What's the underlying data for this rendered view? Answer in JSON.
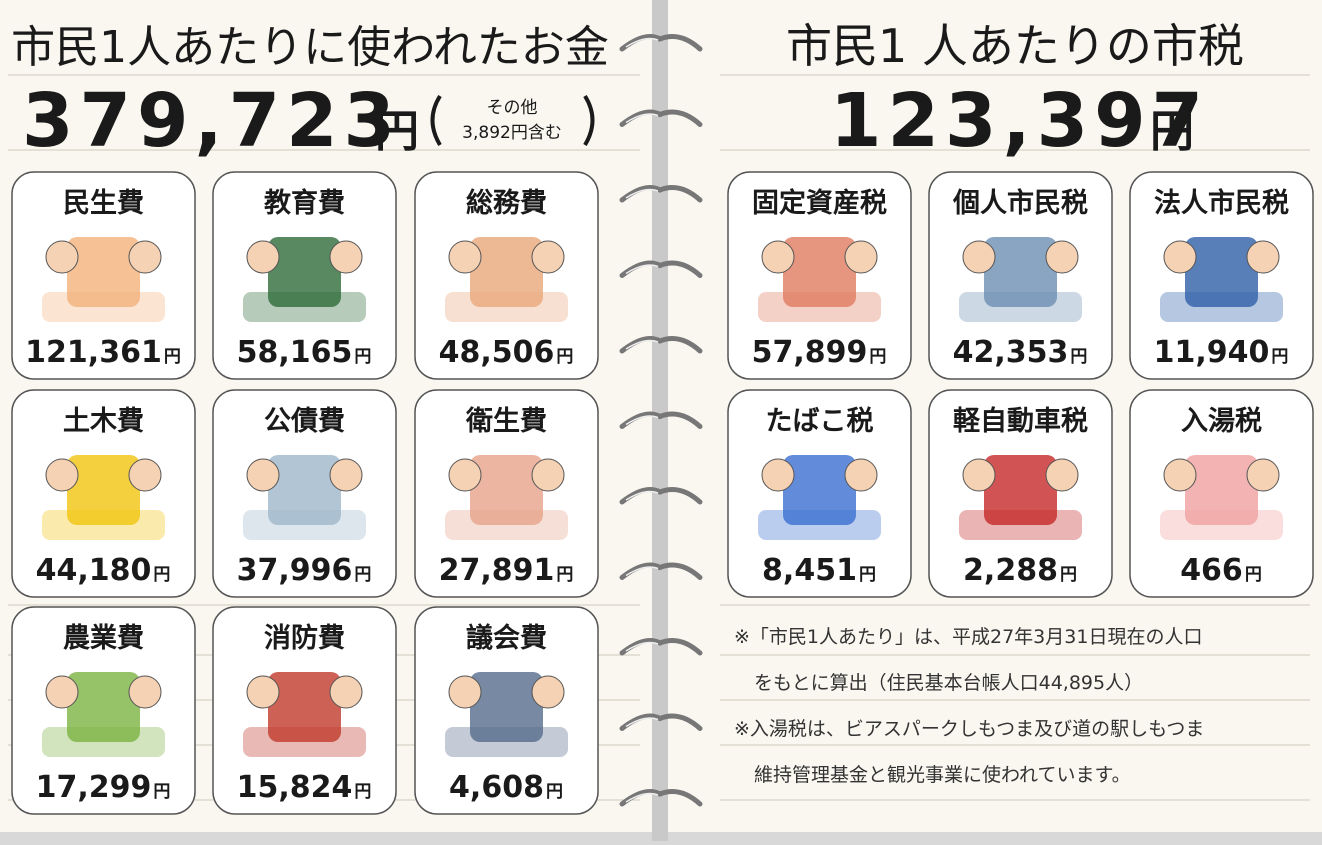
{
  "unit": "円",
  "left": {
    "title": "市民1人あたりに使われたお金",
    "total": "379,723",
    "note": [
      "その他",
      "3,892円含む"
    ],
    "items": [
      {
        "label": "民生費",
        "amount": "121,361"
      },
      {
        "label": "教育費",
        "amount": "58,165"
      },
      {
        "label": "総務費",
        "amount": "48,506"
      },
      {
        "label": "土木費",
        "amount": "44,180"
      },
      {
        "label": "公債費",
        "amount": "37,996"
      },
      {
        "label": "衛生費",
        "amount": "27,891"
      },
      {
        "label": "農業費",
        "amount": "17,299"
      },
      {
        "label": "消防費",
        "amount": "15,824"
      },
      {
        "label": "議会費",
        "amount": "4,608"
      }
    ]
  },
  "right": {
    "title": "市民1 人あたりの市税",
    "total": "123,397",
    "items": [
      {
        "label": "固定資産税",
        "amount": "57,899"
      },
      {
        "label": "個人市民税",
        "amount": "42,353"
      },
      {
        "label": "法人市民税",
        "amount": "11,940"
      },
      {
        "label": "たばこ税",
        "amount": "8,451"
      },
      {
        "label": "軽自動車税",
        "amount": "2,288"
      },
      {
        "label": "入湯税",
        "amount": "466"
      }
    ],
    "notes": [
      "※「市民1人あたり」は、平成27年3月31日現在の人口",
      "をもとに算出（住民基本台帳人口44,895人）",
      "※入湯税は、ビアスパークしもつま及び道の駅しもつま",
      "維持管理基金と観光事業に使われています。"
    ]
  }
}
